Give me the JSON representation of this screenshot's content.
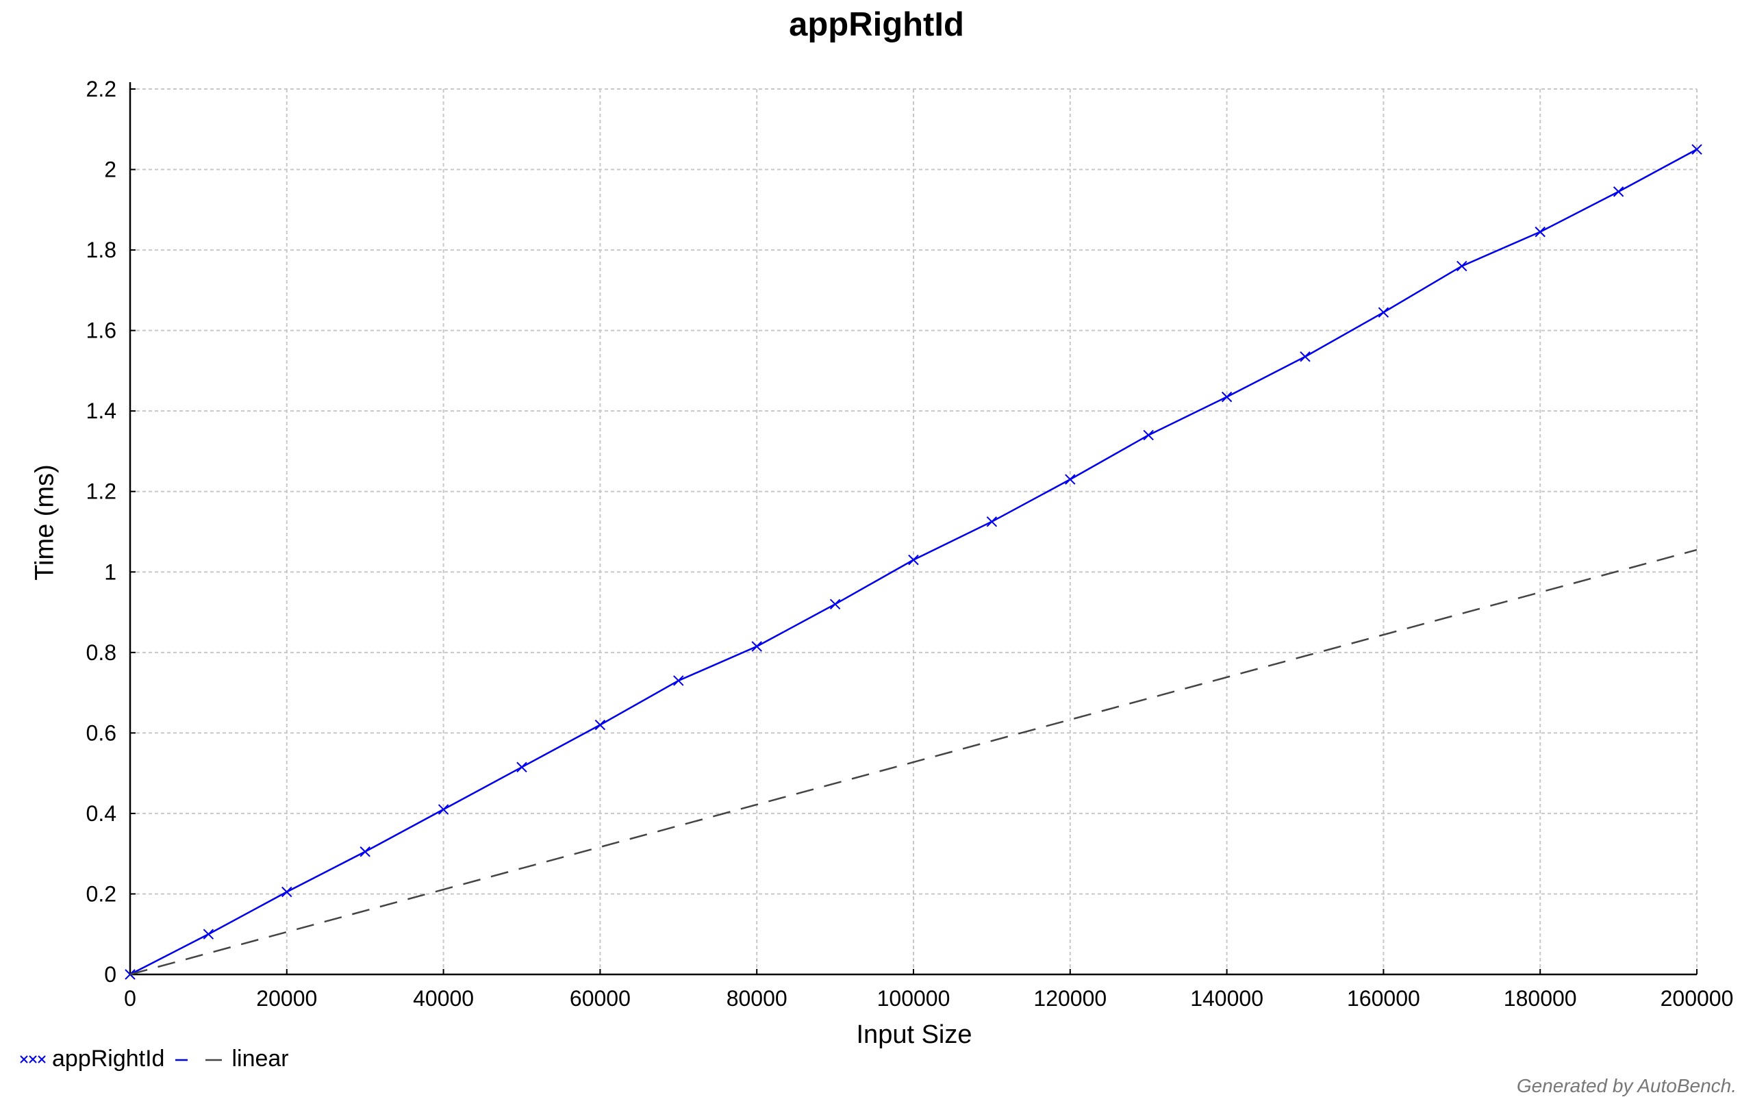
{
  "chart_data": {
    "type": "line",
    "title": "appRightId",
    "xlabel": "Input Size",
    "ylabel": "Time (ms)",
    "xlim": [
      0,
      200000
    ],
    "ylim": [
      0,
      2.2
    ],
    "xticks": [
      0,
      20000,
      40000,
      60000,
      80000,
      100000,
      120000,
      140000,
      160000,
      180000,
      200000
    ],
    "yticks": [
      0,
      0.2,
      0.4,
      0.6,
      0.8,
      1,
      1.2,
      1.4,
      1.6,
      1.8,
      2,
      2.2
    ],
    "xtick_labels": [
      "0",
      "20000",
      "40000",
      "60000",
      "80000",
      "100000",
      "120000",
      "140000",
      "160000",
      "180000",
      "200000"
    ],
    "ytick_labels": [
      "0",
      "0.2",
      "0.4",
      "0.6",
      "0.8",
      "1",
      "1.2",
      "1.4",
      "1.6",
      "1.8",
      "2",
      "2.2"
    ],
    "grid": true,
    "legend_position": "bottom-left",
    "series": [
      {
        "name": "appRightId",
        "style": "solid-with-x-markers",
        "color": "#0000ee",
        "x": [
          0,
          10000,
          20000,
          30000,
          40000,
          50000,
          60000,
          70000,
          80000,
          90000,
          100000,
          110000,
          120000,
          130000,
          140000,
          150000,
          160000,
          170000,
          180000,
          190000,
          200000
        ],
        "y": [
          0,
          0.1,
          0.205,
          0.305,
          0.41,
          0.515,
          0.62,
          0.73,
          0.815,
          0.92,
          1.03,
          1.125,
          1.23,
          1.34,
          1.435,
          1.535,
          1.645,
          1.76,
          1.845,
          1.945,
          2.05
        ]
      },
      {
        "name": "linear",
        "style": "dashed",
        "color": "#444444",
        "x": [
          0,
          200000
        ],
        "y": [
          0,
          1.055
        ]
      }
    ]
  },
  "footer": "Generated by AutoBench."
}
